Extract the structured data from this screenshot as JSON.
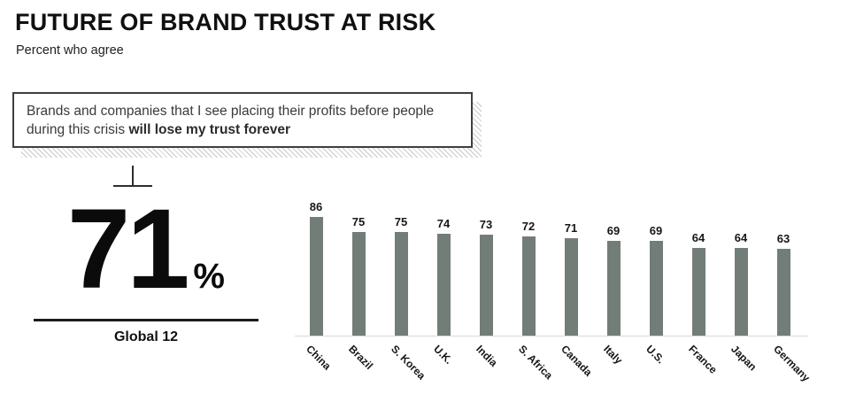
{
  "header": {
    "title": "FUTURE OF BRAND TRUST AT RISK",
    "subtitle": "Percent who agree"
  },
  "quote": {
    "regular": "Brands and companies that I see placing their profits before people during this crisis ",
    "bold": "will lose my trust forever"
  },
  "stat": {
    "value": "71",
    "unit": "%",
    "label": "Global 12"
  },
  "chart_data": {
    "type": "bar",
    "categories": [
      "China",
      "Brazil",
      "S. Korea",
      "U.K.",
      "India",
      "S. Africa",
      "Canada",
      "Italy",
      "U.S.",
      "France",
      "Japan",
      "Germany"
    ],
    "values": [
      86,
      75,
      75,
      74,
      73,
      72,
      71,
      69,
      69,
      64,
      64,
      63
    ],
    "title": "FUTURE OF BRAND TRUST AT RISK",
    "xlabel": "",
    "ylabel": "",
    "ylim": [
      0,
      100
    ],
    "grid": false,
    "legend": false,
    "value_labels": true,
    "bar_color": "#737d78",
    "axis_line_color": "#d9d9d9",
    "label_rotation_deg": 45
  },
  "colors": {
    "bar": "#737d78",
    "axis_line": "#d9d9d9",
    "box_border": "#3f3f3f",
    "hatch_shadow": "#c9c9c9",
    "text": "#1a1a1a"
  }
}
